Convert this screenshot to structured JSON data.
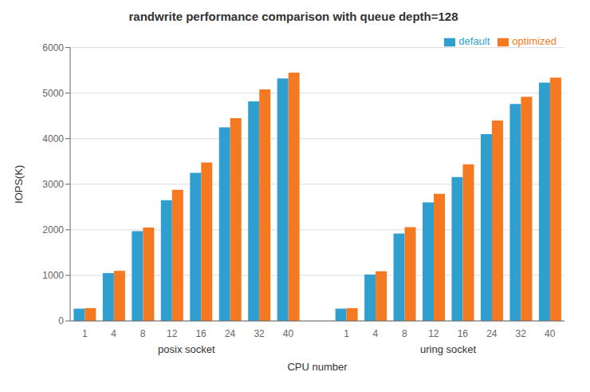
{
  "chart_data": {
    "type": "bar",
    "title": "randwrite performance comparison with queue depth=128",
    "x_label": "CPU number",
    "y_label": "IOPS(K)",
    "groups": [
      "posix socket",
      "uring socket"
    ],
    "categories": [
      "1",
      "4",
      "8",
      "12",
      "16",
      "24",
      "32",
      "40",
      "1",
      "4",
      "8",
      "12",
      "16",
      "24",
      "32",
      "40"
    ],
    "series": [
      {
        "name": "default",
        "color": "#2f9fd0",
        "values": [
          270,
          1050,
          1970,
          2650,
          3250,
          4250,
          4820,
          5320,
          270,
          1020,
          1920,
          2600,
          3160,
          4100,
          4760,
          5230
        ]
      },
      {
        "name": "optimized",
        "color": "#f47920",
        "values": [
          280,
          1100,
          2050,
          2880,
          3480,
          4450,
          5080,
          5450,
          280,
          1090,
          2060,
          2790,
          3440,
          4400,
          4920,
          5340
        ]
      }
    ],
    "ylim": [
      0,
      6000
    ],
    "yticks": [
      0,
      1000,
      2000,
      3000,
      4000,
      5000,
      6000
    ],
    "grid": true,
    "legend": "upper right"
  }
}
